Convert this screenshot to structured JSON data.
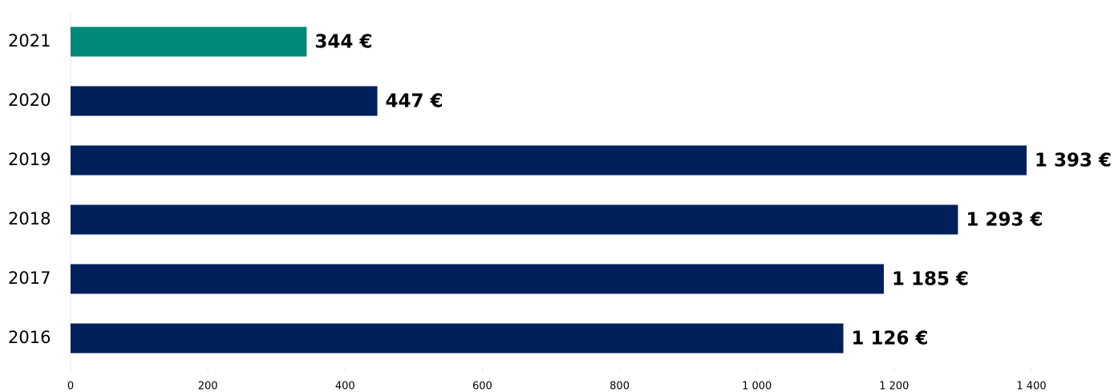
{
  "chart_data": {
    "type": "hbar",
    "categories": [
      "2021",
      "2020",
      "2019",
      "2018",
      "2017",
      "2016"
    ],
    "values": [
      344,
      447,
      1393,
      1293,
      1185,
      1126
    ],
    "value_labels": [
      "344 €",
      "447 €",
      "1 393 €",
      "1 293 €",
      "1 185 €",
      "1 126 €"
    ],
    "colors": [
      "#008976",
      "#00205b",
      "#00205b",
      "#00205b",
      "#00205b",
      "#00205b"
    ],
    "xlim": [
      0,
      1400
    ],
    "xticks": [
      0,
      200,
      400,
      600,
      800,
      {
        "value": 1000,
        "label": "1 000"
      },
      {
        "value": 1200,
        "label": "1 200"
      },
      {
        "value": 1400,
        "label": "1 400"
      }
    ],
    "grid": false
  }
}
